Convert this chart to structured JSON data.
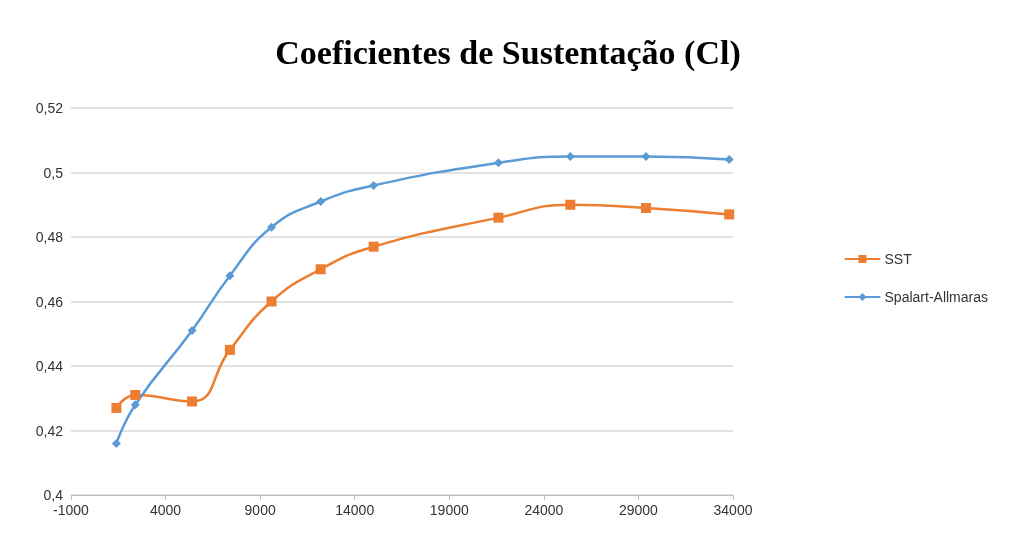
{
  "chart_data": {
    "type": "line",
    "title": "Coeficientes de Sustentação (Cl)",
    "x": [
      1400,
      2400,
      5400,
      7400,
      9600,
      12200,
      15000,
      21600,
      25400,
      29400,
      33800
    ],
    "series": [
      {
        "name": "SST",
        "color": "#ed7d31",
        "marker": "square",
        "values": [
          0.427,
          0.431,
          0.429,
          0.445,
          0.46,
          0.47,
          0.477,
          0.486,
          0.49,
          0.489,
          0.487
        ]
      },
      {
        "name": "Spalart-Allmaras",
        "color": "#5b9bd5",
        "marker": "diamond",
        "values": [
          0.416,
          0.428,
          0.451,
          0.468,
          0.483,
          0.491,
          0.496,
          0.503,
          0.505,
          0.505,
          0.504
        ]
      }
    ],
    "xlim": [
      -1000,
      34000
    ],
    "xticks": [
      -1000,
      4000,
      9000,
      14000,
      19000,
      24000,
      29000,
      34000
    ],
    "ylim": [
      0.4,
      0.52
    ],
    "yticks": [
      {
        "value": 0.4,
        "label": "0,4"
      },
      {
        "value": 0.42,
        "label": "0,42"
      },
      {
        "value": 0.44,
        "label": "0,44"
      },
      {
        "value": 0.46,
        "label": "0,46"
      },
      {
        "value": 0.48,
        "label": "0,48"
      },
      {
        "value": 0.5,
        "label": "0,5"
      },
      {
        "value": 0.52,
        "label": "0,52"
      }
    ],
    "grid": "y",
    "legend": "right",
    "line_style": "solid"
  }
}
